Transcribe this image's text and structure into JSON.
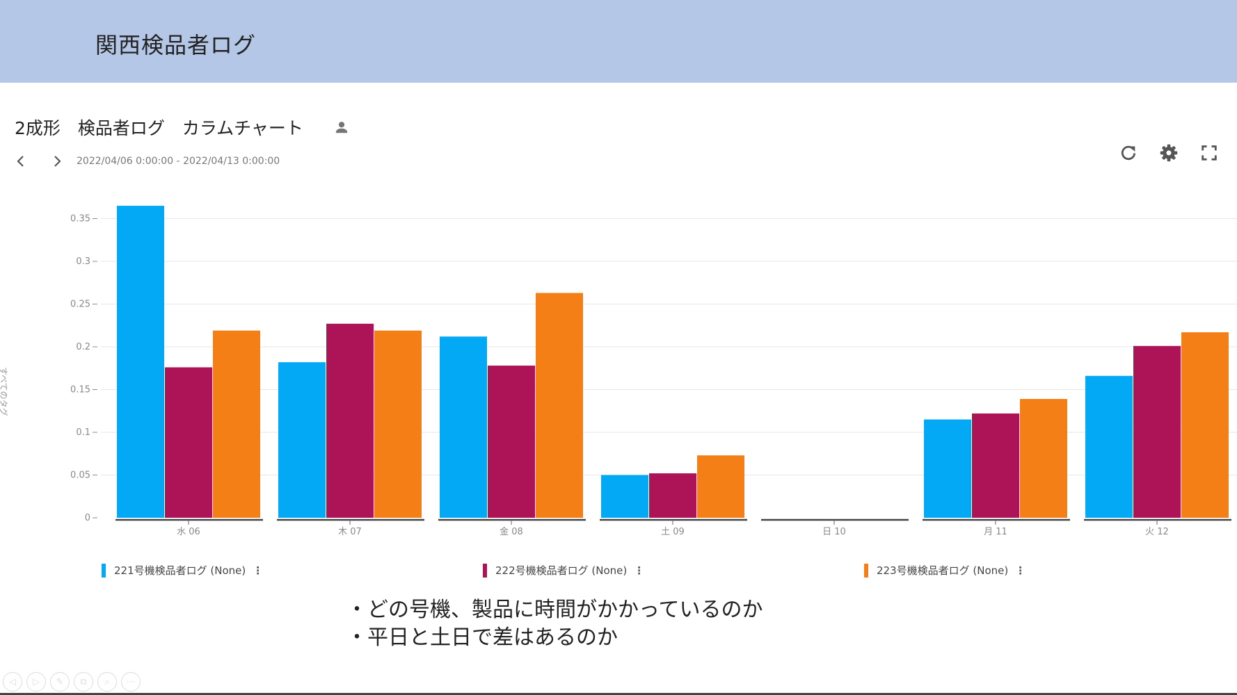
{
  "banner": {
    "title": "関西検品者ログ"
  },
  "panel": {
    "title": "2成形　検品者ログ　カラムチャート",
    "date_range": "2022/04/06 0:00:00 - 2022/04/13 0:00:00",
    "icons": {
      "user": "person-icon",
      "prev": "chevron-left-icon",
      "next": "chevron-right-icon",
      "refresh": "refresh-icon",
      "settings": "gear-icon",
      "fullscreen": "fullscreen-icon"
    }
  },
  "chart_data": {
    "type": "bar",
    "categories": [
      "水 06",
      "木 07",
      "金 08",
      "土 09",
      "日 10",
      "月 11",
      "火 12"
    ],
    "ylabel": "すべてのタグ",
    "ylim": [
      0,
      0.37
    ],
    "yticks": [
      "0",
      "0.05",
      "0.1",
      "0.15",
      "0.2",
      "0.25",
      "0.3",
      "0.35"
    ],
    "grid": true,
    "legend_position": "bottom",
    "series": [
      {
        "name": "221号機検品者ログ (None)",
        "color": "#03a9f4",
        "values": [
          0.365,
          0.182,
          0.212,
          0.05,
          0,
          0.115,
          0.166
        ]
      },
      {
        "name": "222号機検品者ログ (None)",
        "color": "#ad1457",
        "values": [
          0.176,
          0.227,
          0.178,
          0.052,
          0,
          0.122,
          0.201
        ]
      },
      {
        "name": "223号機検品者ログ (None)",
        "color": "#f57f17",
        "values": [
          0.219,
          0.219,
          0.263,
          0.073,
          0,
          0.139,
          0.217
        ]
      }
    ]
  },
  "legend": {
    "menu_glyph": "⋮"
  },
  "notes": [
    "・どの号機、製品に時間がかかっているのか",
    "・平日と土日で差はあるのか"
  ],
  "slide_controls": [
    "◁",
    "▷",
    "✎",
    "⧉",
    "⌕",
    "⋯"
  ]
}
